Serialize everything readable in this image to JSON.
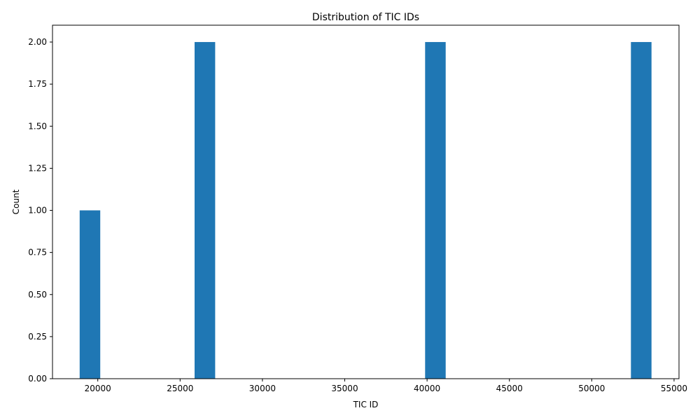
{
  "chart_data": {
    "type": "bar",
    "title": "Distribution of TIC IDs",
    "xlabel": "TIC ID",
    "ylabel": "Count",
    "xlim": [
      17250,
      55300
    ],
    "ylim": [
      0,
      2.1
    ],
    "x_ticks": [
      20000,
      25000,
      30000,
      35000,
      40000,
      45000,
      50000,
      55000
    ],
    "y_ticks": [
      0.0,
      0.25,
      0.5,
      0.75,
      1.0,
      1.25,
      1.5,
      1.75,
      2.0
    ],
    "x_tick_labels": [
      "20000",
      "25000",
      "30000",
      "35000",
      "40000",
      "45000",
      "50000",
      "55000"
    ],
    "y_tick_labels": [
      "0.00",
      "0.25",
      "0.50",
      "0.75",
      "1.00",
      "1.25",
      "1.50",
      "1.75",
      "2.00"
    ],
    "bars": [
      {
        "x0": 18900,
        "x1": 20150,
        "count": 1
      },
      {
        "x0": 25880,
        "x1": 27130,
        "count": 2
      },
      {
        "x0": 39880,
        "x1": 41130,
        "count": 2
      },
      {
        "x0": 52380,
        "x1": 53630,
        "count": 2
      }
    ],
    "bar_color": "#1f77b4",
    "grid": false,
    "legend": "none"
  }
}
